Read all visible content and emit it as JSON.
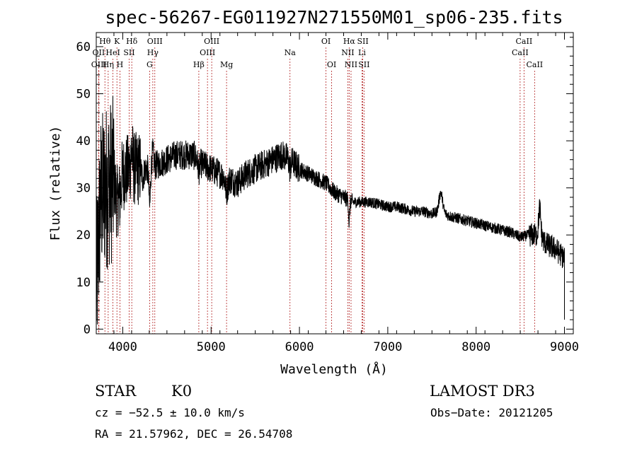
{
  "chart_data": {
    "type": "line",
    "title": "spec-56267-EG011927N271550M01_sp06-235.fits",
    "xlabel": "Wavelength (Å)",
    "ylabel": "Flux (relative)",
    "xlim": [
      3700,
      9100
    ],
    "ylim": [
      -1,
      63
    ],
    "xticks": [
      4000,
      5000,
      6000,
      7000,
      8000,
      9000
    ],
    "yticks": [
      0,
      10,
      20,
      30,
      40,
      50,
      60
    ],
    "series": [
      {
        "name": "flux",
        "continuum": [
          [
            3700,
            8
          ],
          [
            3750,
            28
          ],
          [
            3800,
            30
          ],
          [
            3850,
            31
          ],
          [
            3900,
            32
          ],
          [
            3950,
            32
          ],
          [
            4000,
            33
          ],
          [
            4100,
            34
          ],
          [
            4200,
            34
          ],
          [
            4300,
            34
          ],
          [
            4400,
            35
          ],
          [
            4500,
            36
          ],
          [
            4600,
            37
          ],
          [
            4700,
            37
          ],
          [
            4800,
            37
          ],
          [
            4900,
            35
          ],
          [
            5000,
            34
          ],
          [
            5100,
            33
          ],
          [
            5200,
            32
          ],
          [
            5300,
            31
          ],
          [
            5400,
            33
          ],
          [
            5500,
            34
          ],
          [
            5600,
            35
          ],
          [
            5700,
            36
          ],
          [
            5800,
            37
          ],
          [
            5900,
            36
          ],
          [
            6000,
            34
          ],
          [
            6100,
            33
          ],
          [
            6200,
            32
          ],
          [
            6300,
            31
          ],
          [
            6400,
            29
          ],
          [
            6500,
            28
          ],
          [
            6600,
            27
          ],
          [
            6700,
            27
          ],
          [
            6800,
            27
          ],
          [
            6900,
            26.5
          ],
          [
            7000,
            26
          ],
          [
            7100,
            26
          ],
          [
            7200,
            25.5
          ],
          [
            7300,
            25
          ],
          [
            7400,
            25
          ],
          [
            7500,
            24.5
          ],
          [
            7600,
            25
          ],
          [
            7700,
            24
          ],
          [
            7800,
            23.5
          ],
          [
            7900,
            23
          ],
          [
            8000,
            22.5
          ],
          [
            8100,
            22
          ],
          [
            8200,
            21.5
          ],
          [
            8300,
            21
          ],
          [
            8400,
            20.5
          ],
          [
            8500,
            19.5
          ],
          [
            8600,
            20
          ],
          [
            8700,
            20
          ],
          [
            8800,
            18
          ],
          [
            8900,
            17
          ],
          [
            9000,
            15
          ]
        ],
        "features": [
          [
            3934,
            -5,
            15
          ],
          [
            3968,
            -4,
            12
          ],
          [
            4101,
            4,
            10
          ],
          [
            4227,
            -2,
            10
          ],
          [
            4305,
            -8,
            8
          ],
          [
            4340,
            3,
            10
          ],
          [
            4861,
            -2,
            10
          ],
          [
            5175,
            -3,
            14
          ],
          [
            5893,
            -2,
            10
          ],
          [
            6563,
            -5,
            6
          ],
          [
            7600,
            4,
            20
          ],
          [
            8720,
            6,
            12
          ]
        ]
      }
    ],
    "spectral_lines": [
      {
        "label": "Hθ",
        "wavelength": 3798,
        "row": 1
      },
      {
        "label": "OII",
        "wavelength": 3727,
        "row": 2
      },
      {
        "label": "OIII",
        "wavelength": 3730,
        "row": 3
      },
      {
        "label": "K",
        "wavelength": 3934,
        "row": 1
      },
      {
        "label": "HeI",
        "wavelength": 3889,
        "row": 2
      },
      {
        "label": "Hη",
        "wavelength": 3835,
        "row": 3
      },
      {
        "label": "SII",
        "wavelength": 4072,
        "row": 2
      },
      {
        "label": "H",
        "wavelength": 3968,
        "row": 3
      },
      {
        "label": "Hδ",
        "wavelength": 4102,
        "row": 1
      },
      {
        "label": "OIII",
        "wavelength": 4363,
        "row": 1
      },
      {
        "label": "Hγ",
        "wavelength": 4340,
        "row": 2
      },
      {
        "label": "G",
        "wavelength": 4304,
        "row": 3
      },
      {
        "label": "Hβ",
        "wavelength": 4861,
        "row": 3
      },
      {
        "label": "OIII",
        "wavelength": 5007,
        "row": 1
      },
      {
        "label": "OIII",
        "wavelength": 4959,
        "row": 2
      },
      {
        "label": "Mg",
        "wavelength": 5175,
        "row": 3
      },
      {
        "label": "Na",
        "wavelength": 5893,
        "row": 2
      },
      {
        "label": "OI",
        "wavelength": 6300,
        "row": 1
      },
      {
        "label": "OI",
        "wavelength": 6364,
        "row": 3
      },
      {
        "label": "Hα",
        "wavelength": 6563,
        "row": 1
      },
      {
        "label": "NII",
        "wavelength": 6548,
        "row": 2
      },
      {
        "label": "NII",
        "wavelength": 6584,
        "row": 3
      },
      {
        "label": "SII",
        "wavelength": 6717,
        "row": 1
      },
      {
        "label": "Li",
        "wavelength": 6708,
        "row": 2
      },
      {
        "label": "SII",
        "wavelength": 6731,
        "row": 3
      },
      {
        "label": "CaII",
        "wavelength": 8542,
        "row": 1
      },
      {
        "label": "CaII",
        "wavelength": 8498,
        "row": 2
      },
      {
        "label": "CaII",
        "wavelength": 8662,
        "row": 3
      }
    ]
  },
  "info": {
    "class": "STAR",
    "subclass": "K0",
    "survey": "LAMOST DR3",
    "cz": "cz = −52.5 ± 10.0 km/s",
    "obs_date": "Obs−Date: 20121205",
    "coords": "RA =  21.57962, DEC =  26.54708"
  }
}
